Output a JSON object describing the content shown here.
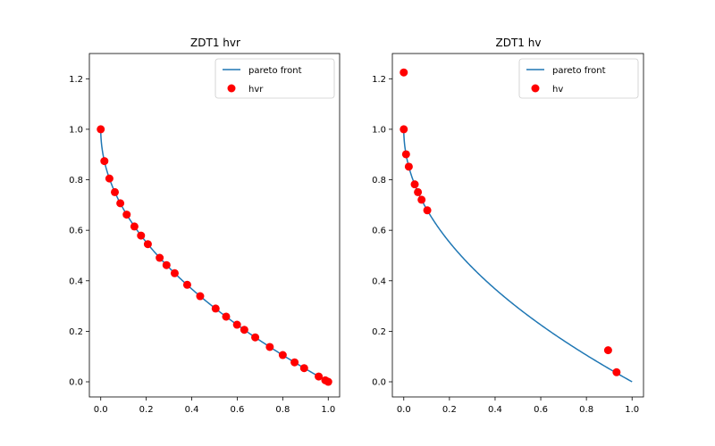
{
  "chart_data": [
    {
      "type": "scatter",
      "title": "ZDT1 hvr",
      "xlabel": "",
      "ylabel": "",
      "xlim": [
        -0.05,
        1.05
      ],
      "ylim": [
        -0.06,
        1.3
      ],
      "xticks": [
        "0.0",
        "0.2",
        "0.4",
        "0.6",
        "0.8",
        "1.0"
      ],
      "yticks": [
        "0.0",
        "0.2",
        "0.4",
        "0.6",
        "0.8",
        "1.0",
        "1.2"
      ],
      "xtick_values": [
        0,
        0.2,
        0.4,
        0.6,
        0.8,
        1.0
      ],
      "ytick_values": [
        0,
        0.2,
        0.4,
        0.6,
        0.8,
        1.0,
        1.2
      ],
      "legend_position": "top-right",
      "grid": false,
      "series": [
        {
          "name": "pareto front",
          "kind": "line",
          "color": "#1f77b4",
          "function": "1 - sqrt(x)",
          "x_range": [
            0,
            1
          ]
        },
        {
          "name": "hvr",
          "kind": "scatter",
          "color": "#ff0000",
          "x": [
            0.0,
            0.016,
            0.038,
            0.062,
            0.086,
            0.114,
            0.148,
            0.177,
            0.207,
            0.259,
            0.289,
            0.325,
            0.38,
            0.437,
            0.505,
            0.551,
            0.599,
            0.631,
            0.679,
            0.743,
            0.8,
            0.852,
            0.894,
            0.958,
            0.987,
            1.0
          ],
          "y": [
            1.0,
            0.874,
            0.805,
            0.751,
            0.707,
            0.662,
            0.615,
            0.579,
            0.545,
            0.491,
            0.462,
            0.43,
            0.384,
            0.339,
            0.29,
            0.258,
            0.226,
            0.206,
            0.176,
            0.138,
            0.106,
            0.077,
            0.054,
            0.021,
            0.006,
            0.0
          ]
        }
      ]
    },
    {
      "type": "scatter",
      "title": "ZDT1 hv",
      "xlabel": "",
      "ylabel": "",
      "xlim": [
        -0.05,
        1.05
      ],
      "ylim": [
        -0.06,
        1.3
      ],
      "xticks": [
        "0.0",
        "0.2",
        "0.4",
        "0.6",
        "0.8",
        "1.0"
      ],
      "yticks": [
        "0.0",
        "0.2",
        "0.4",
        "0.6",
        "0.8",
        "1.0",
        "1.2"
      ],
      "xtick_values": [
        0,
        0.2,
        0.4,
        0.6,
        0.8,
        1.0
      ],
      "ytick_values": [
        0,
        0.2,
        0.4,
        0.6,
        0.8,
        1.0,
        1.2
      ],
      "legend_position": "top-right",
      "grid": false,
      "series": [
        {
          "name": "pareto front",
          "kind": "line",
          "color": "#1f77b4",
          "function": "1 - sqrt(x)",
          "x_range": [
            0,
            1
          ]
        },
        {
          "name": "hv",
          "kind": "scatter",
          "color": "#ff0000",
          "x": [
            0.0,
            0.0,
            0.01,
            0.022,
            0.048,
            0.062,
            0.078,
            0.103,
            0.895,
            0.932
          ],
          "y": [
            1.225,
            1.0,
            0.901,
            0.852,
            0.782,
            0.751,
            0.721,
            0.679,
            0.125,
            0.038
          ]
        }
      ]
    }
  ]
}
